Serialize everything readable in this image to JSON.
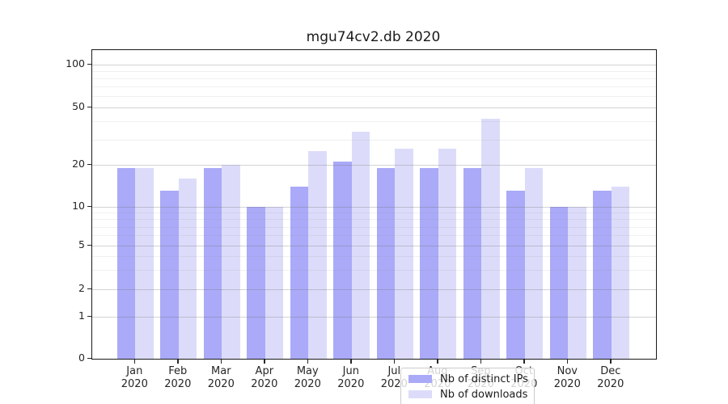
{
  "title": "mgu74cv2.db 2020",
  "chart_data": {
    "type": "bar",
    "categories": [
      "Jan",
      "Feb",
      "Mar",
      "Apr",
      "May",
      "Jun",
      "Jul",
      "Aug",
      "Sep",
      "Oct",
      "Nov",
      "Dec"
    ],
    "category_year": "2020",
    "series": [
      {
        "name": "Nb of distinct IPs",
        "color": "#aaaaf8",
        "values": [
          19,
          13,
          19,
          10,
          14,
          21,
          19,
          19,
          19,
          13,
          10,
          13
        ]
      },
      {
        "name": "Nb of downloads",
        "color": "#dcdcfa",
        "values": [
          19,
          16,
          20,
          10,
          25,
          34,
          26,
          26,
          42,
          19,
          10,
          14
        ]
      }
    ],
    "y_axis": {
      "scale": "symlog",
      "tick_labels": [
        "0",
        "1",
        "2",
        "5",
        "10",
        "20",
        "50",
        "100"
      ],
      "ticks": [
        0,
        1,
        2,
        5,
        10,
        20,
        50,
        100
      ],
      "minor_ticks": [
        3,
        4,
        6,
        7,
        8,
        9,
        30,
        40,
        60,
        70,
        80,
        90
      ],
      "range": [
        0,
        120
      ]
    },
    "grid": true,
    "legend_position": "bottom-center"
  }
}
